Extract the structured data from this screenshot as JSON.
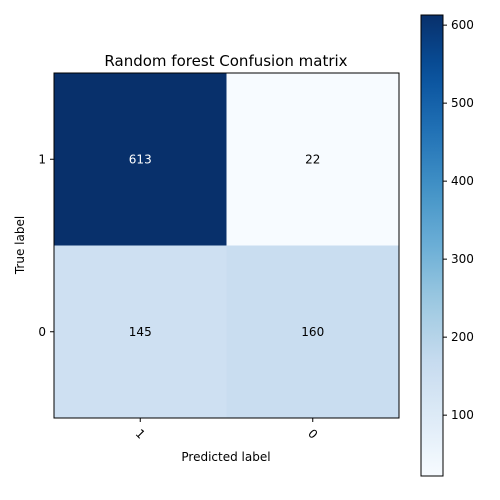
{
  "chart_data": {
    "type": "heatmap",
    "title": "Random forest Confusion matrix",
    "xlabel": "Predicted label",
    "ylabel": "True label",
    "x_categories": [
      "1",
      "0"
    ],
    "y_categories": [
      "1",
      "0"
    ],
    "values": [
      [
        613,
        22
      ],
      [
        145,
        160
      ]
    ],
    "colormap": "Blues",
    "colorbar": {
      "min": 22,
      "max": 613,
      "ticks": [
        100,
        200,
        300,
        400,
        500,
        600
      ]
    },
    "x_tick_rotation": 45
  }
}
